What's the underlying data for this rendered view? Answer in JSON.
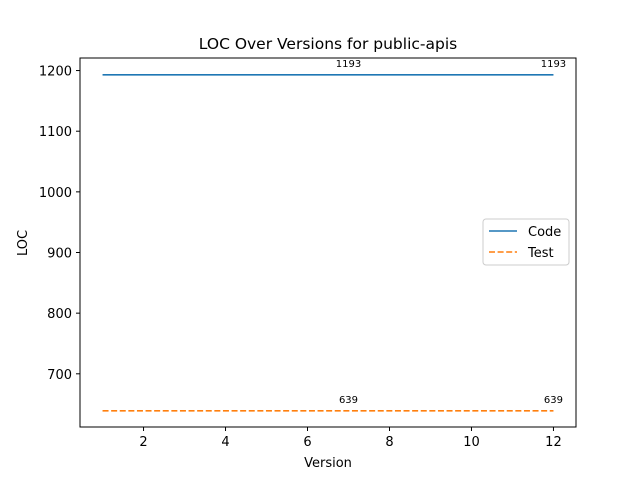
{
  "chart_data": {
    "type": "line",
    "title": "LOC Over Versions for public-apis",
    "xlabel": "Version",
    "ylabel": "LOC",
    "xlim": [
      0.45,
      12.55
    ],
    "ylim": [
      612.3,
      1220.7
    ],
    "xticks": [
      2,
      4,
      6,
      8,
      10,
      12
    ],
    "yticks": [
      700,
      800,
      900,
      1000,
      1100,
      1200
    ],
    "grid": false,
    "legend_position": "center-right",
    "series": [
      {
        "name": "Code",
        "color": "#1f77b4",
        "dash": "solid",
        "x": [
          1,
          12
        ],
        "values": [
          1193,
          1193
        ],
        "labels": [
          {
            "x": 7,
            "y": 1193,
            "text": "1193"
          },
          {
            "x": 12,
            "y": 1193,
            "text": "1193"
          }
        ]
      },
      {
        "name": "Test",
        "color": "#ff7f0e",
        "dash": "dashed",
        "x": [
          1,
          12
        ],
        "values": [
          639,
          639
        ],
        "labels": [
          {
            "x": 7,
            "y": 639,
            "text": "639"
          },
          {
            "x": 12,
            "y": 639,
            "text": "639"
          }
        ]
      }
    ]
  }
}
